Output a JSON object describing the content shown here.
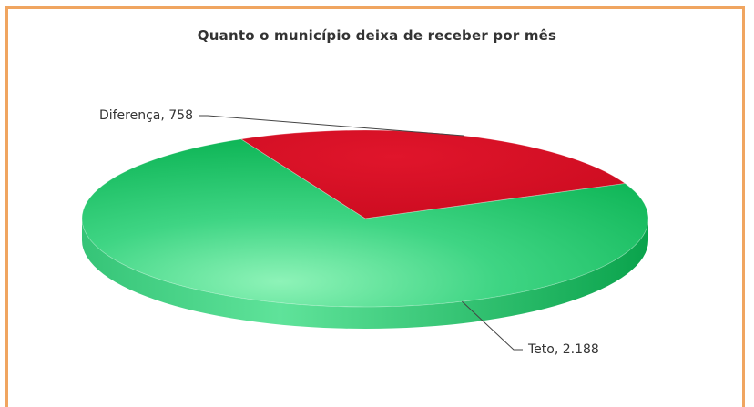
{
  "chart_data": {
    "type": "pie",
    "title": "Quanto o município deixa de receber por mês",
    "slices": [
      {
        "label": "Diferença",
        "value": 758,
        "value_text": "758",
        "color": "#d90f25"
      },
      {
        "label": "Teto",
        "value": 2188,
        "value_text": "2.188",
        "color": "#1ec165"
      }
    ],
    "three_d": true,
    "legend": "none"
  }
}
